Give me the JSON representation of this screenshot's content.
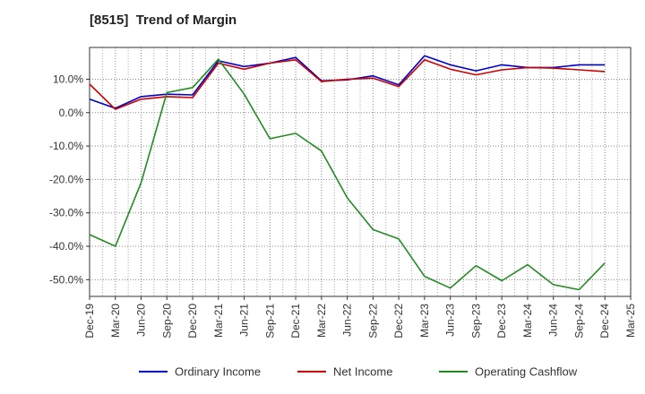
{
  "chart_data": {
    "type": "line",
    "title": "[8515]  Trend of Margin",
    "xlabel": "",
    "ylabel": "",
    "x": [
      "Dec-19",
      "Mar-20",
      "Jun-20",
      "Sep-20",
      "Dec-20",
      "Mar-21",
      "Jun-21",
      "Sep-21",
      "Dec-21",
      "Mar-22",
      "Jun-22",
      "Sep-22",
      "Dec-22",
      "Mar-23",
      "Jun-23",
      "Sep-23",
      "Dec-23",
      "Mar-24",
      "Jun-24",
      "Sep-24",
      "Dec-24",
      "Mar-25"
    ],
    "ylim": [
      -55,
      19.5
    ],
    "yticks": [
      10,
      0,
      -10,
      -20,
      -30,
      -40,
      -50
    ],
    "ytick_labels": [
      "10.0%",
      "0.0%",
      "-10.0%",
      "-20.0%",
      "-30.0%",
      "-40.0%",
      "-50.0%"
    ],
    "grid": true,
    "legend_position": "bottom",
    "series": [
      {
        "name": "Ordinary Income",
        "color": "#0000cc",
        "values": [
          4.0,
          1.3,
          4.8,
          5.5,
          5.3,
          15.5,
          13.8,
          14.8,
          16.5,
          9.5,
          9.8,
          11.0,
          8.3,
          17.0,
          14.3,
          12.5,
          14.3,
          13.5,
          13.5,
          14.3,
          14.3,
          null
        ]
      },
      {
        "name": "Net Income",
        "color": "#cc0000",
        "values": [
          8.5,
          1.0,
          4.0,
          4.8,
          4.5,
          14.8,
          13.0,
          14.8,
          15.8,
          9.3,
          10.0,
          10.3,
          7.8,
          15.8,
          13.0,
          11.3,
          12.8,
          13.5,
          13.3,
          12.8,
          12.3,
          null
        ]
      },
      {
        "name": "Operating Cashflow",
        "color": "#228b22",
        "values": [
          -36.5,
          -40.0,
          -21.0,
          6.0,
          7.5,
          16.0,
          5.5,
          -7.8,
          -6.2,
          -11.5,
          -25.5,
          -35.0,
          -37.8,
          -49.0,
          -52.5,
          -45.8,
          -50.3,
          -45.5,
          -51.5,
          -53.0,
          -45.0,
          null
        ]
      }
    ]
  }
}
